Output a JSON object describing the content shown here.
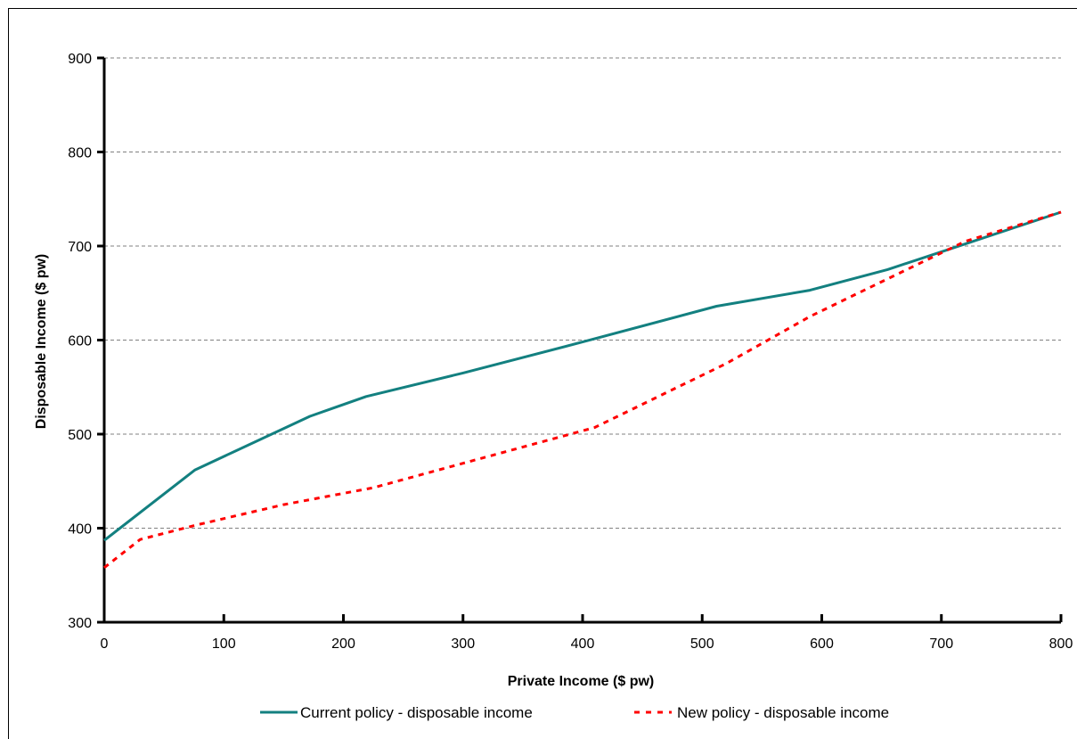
{
  "chart_data": {
    "type": "line",
    "title": "",
    "xlabel": "Private Income ($ pw)",
    "ylabel": "Disposable Income ($ pw)",
    "xlim": [
      0,
      800
    ],
    "ylim": [
      300,
      900
    ],
    "x_ticks": [
      0,
      100,
      200,
      300,
      400,
      500,
      600,
      700,
      800
    ],
    "y_ticks": [
      300,
      400,
      500,
      600,
      700,
      800,
      900
    ],
    "grid": "horizontal dashed",
    "legend_position": "bottom",
    "series": [
      {
        "name": "Current policy - disposable income",
        "color": "#138080",
        "style": "solid",
        "points": [
          [
            0,
            387
          ],
          [
            76,
            462
          ],
          [
            172,
            519
          ],
          [
            219,
            540
          ],
          [
            300,
            565
          ],
          [
            400,
            598
          ],
          [
            512,
            636
          ],
          [
            590,
            653
          ],
          [
            655,
            675
          ],
          [
            710,
            698
          ],
          [
            800,
            736
          ]
        ]
      },
      {
        "name": "New policy - disposable income",
        "color": "#ff0000",
        "style": "dashed",
        "points": [
          [
            0,
            358
          ],
          [
            30,
            388
          ],
          [
            76,
            403
          ],
          [
            150,
            425
          ],
          [
            225,
            443
          ],
          [
            300,
            469
          ],
          [
            410,
            507
          ],
          [
            520,
            575
          ],
          [
            590,
            625
          ],
          [
            650,
            662
          ],
          [
            720,
            705
          ],
          [
            800,
            736
          ]
        ]
      }
    ]
  }
}
